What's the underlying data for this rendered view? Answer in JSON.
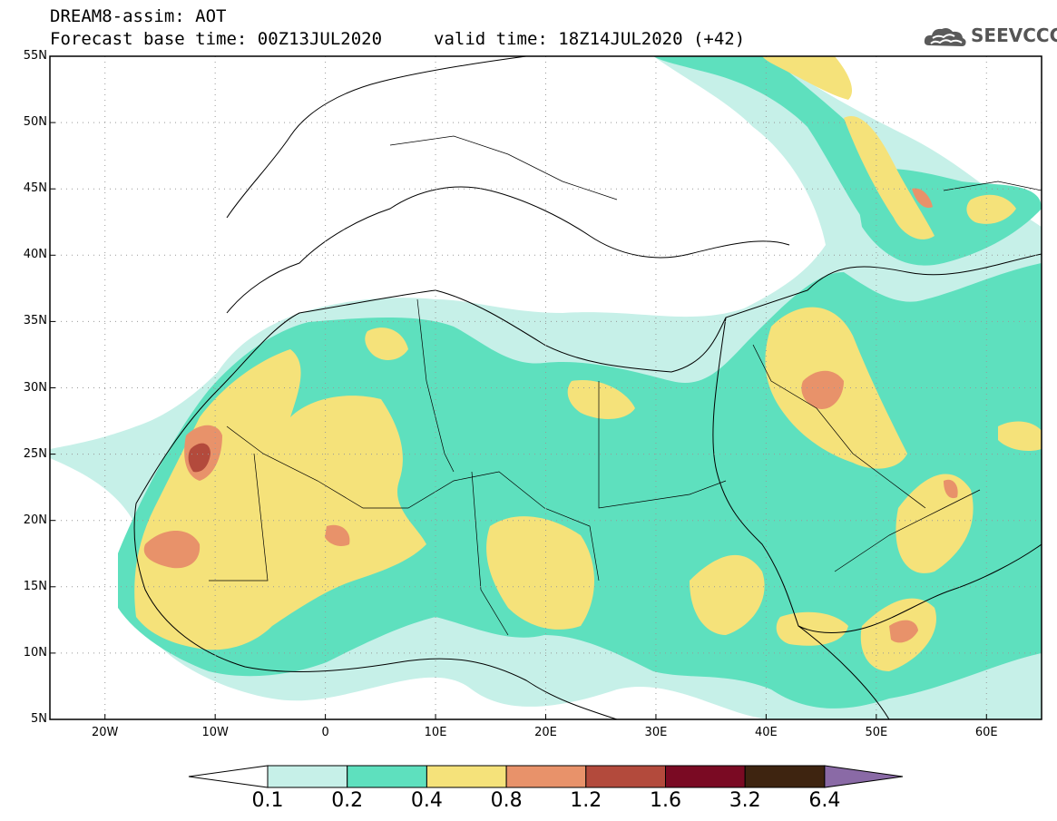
{
  "header": {
    "title": "DREAM8-assim: AOT",
    "base_time": "Forecast base time: 00Z13JUL2020",
    "valid_time": "valid time: 18Z14JUL2020 (+42)"
  },
  "logo": {
    "text": "SEEVCCC",
    "icon": "cloud-icon"
  },
  "map": {
    "projection": "lat-lon",
    "lon_range": [
      -25,
      65
    ],
    "lat_range": [
      5,
      55
    ],
    "lat_ticks": [
      {
        "value": 55,
        "label": "55N"
      },
      {
        "value": 50,
        "label": "50N"
      },
      {
        "value": 45,
        "label": "45N"
      },
      {
        "value": 40,
        "label": "40N"
      },
      {
        "value": 35,
        "label": "35N"
      },
      {
        "value": 30,
        "label": "30N"
      },
      {
        "value": 25,
        "label": "25N"
      },
      {
        "value": 20,
        "label": "20N"
      },
      {
        "value": 15,
        "label": "15N"
      },
      {
        "value": 10,
        "label": "10N"
      },
      {
        "value": 5,
        "label": "5N"
      }
    ],
    "lon_ticks": [
      {
        "value": -20,
        "label": "20W"
      },
      {
        "value": -10,
        "label": "10W"
      },
      {
        "value": 0,
        "label": "0"
      },
      {
        "value": 10,
        "label": "10E"
      },
      {
        "value": 20,
        "label": "20E"
      },
      {
        "value": 30,
        "label": "30E"
      },
      {
        "value": 40,
        "label": "40E"
      },
      {
        "value": 50,
        "label": "50E"
      },
      {
        "value": 60,
        "label": "60E"
      }
    ],
    "grid": "dotted"
  },
  "colorbar": {
    "levels": [
      "0.1",
      "0.2",
      "0.4",
      "0.8",
      "1.2",
      "1.6",
      "3.2",
      "6.4"
    ],
    "colors": [
      "#ffffff",
      "#c6f0e8",
      "#5ee0be",
      "#f5e27a",
      "#e8926a",
      "#b34a3c",
      "#7a0a23",
      "#3e2410",
      "#8a6aa6"
    ]
  }
}
